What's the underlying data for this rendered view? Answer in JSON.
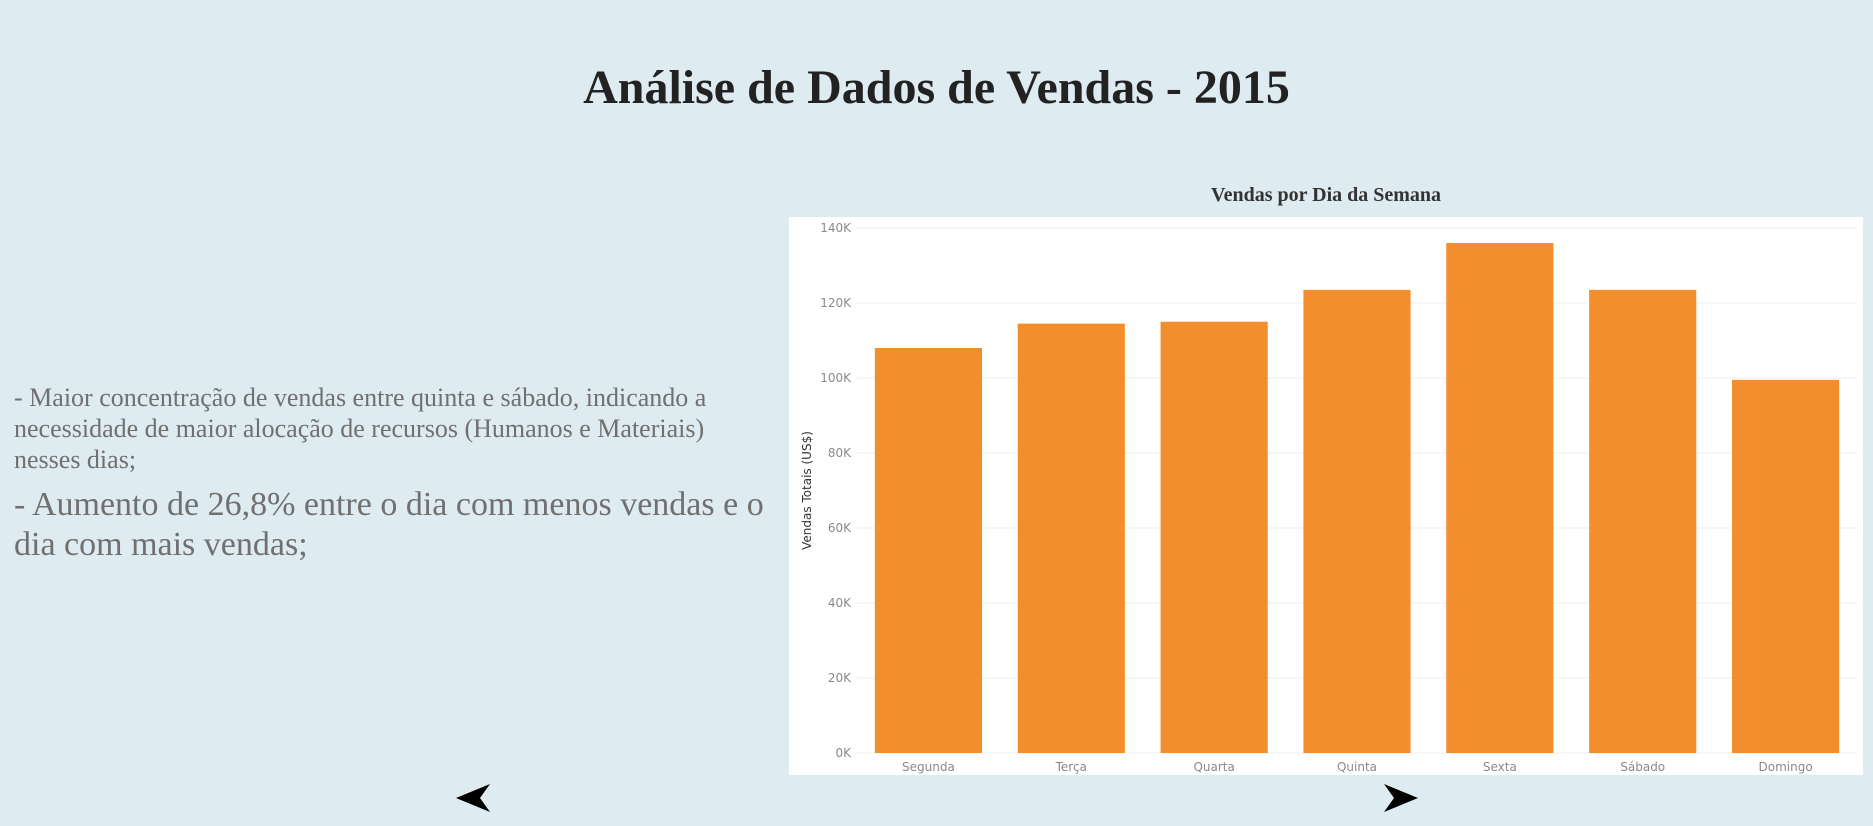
{
  "page": {
    "title": "Análise de Dados de Vendas - 2015"
  },
  "notes": [
    "- Maior concentração de vendas entre quinta e sábado, indicando a necessidade de maior alocação de recursos (Humanos e Materiais) nesses dias;",
    "- Aumento de 26,8% entre o dia com menos vendas e o dia com mais vendas;"
  ],
  "navigation": {
    "prev_icon": "arrow-left-icon",
    "next_icon": "arrow-right-icon"
  },
  "chart_data": {
    "type": "bar",
    "title": "Vendas por Dia da Semana",
    "xlabel": "",
    "ylabel": "Vendas Totais (US$)",
    "categories": [
      "Segunda",
      "Terça",
      "Quarta",
      "Quinta",
      "Sexta",
      "Sábado",
      "Domingo"
    ],
    "values": [
      108000,
      114500,
      115000,
      123500,
      136000,
      123500,
      99500
    ],
    "ylim": [
      0,
      140000
    ],
    "yticks": [
      0,
      20000,
      40000,
      60000,
      80000,
      100000,
      120000,
      140000
    ],
    "ytick_labels": [
      "0K",
      "20K",
      "40K",
      "60K",
      "80K",
      "100K",
      "120K",
      "140K"
    ],
    "grid": true,
    "bar_color": "#f28e2b"
  }
}
